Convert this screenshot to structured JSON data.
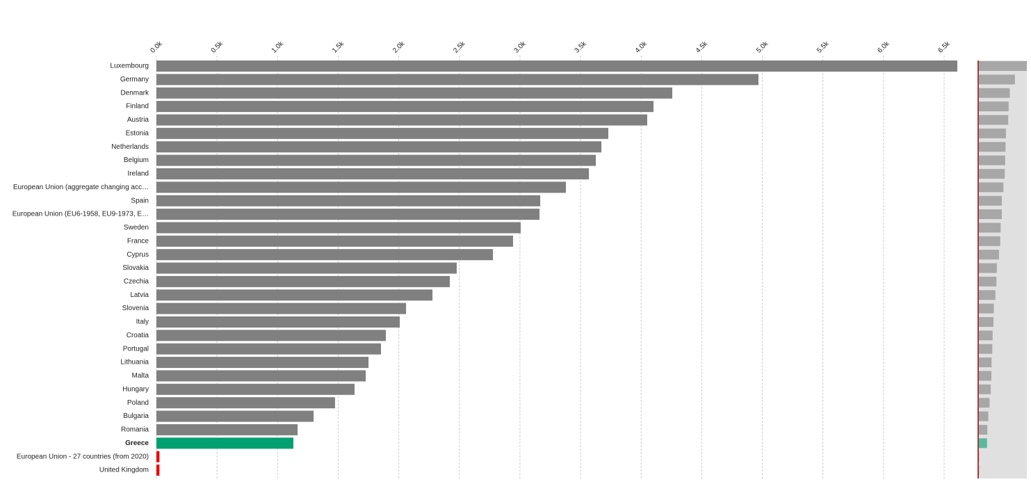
{
  "chart_data": {
    "type": "hbar",
    "categories": [
      "Luxembourg",
      "Germany",
      "Denmark",
      "Finland",
      "Austria",
      "Estonia",
      "Netherlands",
      "Belgium",
      "Ireland",
      "European Union (aggregate changing acc…",
      "Spain",
      "European Union (EU6-1958, EU9-1973, E…",
      "Sweden",
      "France",
      "Cyprus",
      "Slovakia",
      "Czechia",
      "Latvia",
      "Slovenia",
      "Italy",
      "Croatia",
      "Portugal",
      "Lithuania",
      "Malta",
      "Hungary",
      "Poland",
      "Bulgaria",
      "Romania",
      "Greece",
      "European Union - 27 countries (from 2020)",
      "United Kingdom"
    ],
    "values": [
      6609,
      4968,
      4257,
      4102,
      4050,
      3729,
      3672,
      3626,
      3569,
      3379,
      3167,
      3161,
      3006,
      2943,
      2777,
      2478,
      2421,
      2278,
      2060,
      2008,
      1893,
      1853,
      1750,
      1727,
      1635,
      1474,
      1297,
      1165,
      1130,
      25,
      25
    ],
    "colors": [
      "#808080",
      "#808080",
      "#808080",
      "#808080",
      "#808080",
      "#808080",
      "#808080",
      "#808080",
      "#808080",
      "#808080",
      "#808080",
      "#808080",
      "#808080",
      "#808080",
      "#808080",
      "#808080",
      "#808080",
      "#808080",
      "#808080",
      "#808080",
      "#808080",
      "#808080",
      "#808080",
      "#808080",
      "#808080",
      "#808080",
      "#808080",
      "#808080",
      "#00a070",
      "#ee0000",
      "#ee0000"
    ],
    "bold_category": 28,
    "xlim": [
      0,
      6500
    ],
    "xticks": [
      {
        "value": 0,
        "label": "0.0k"
      },
      {
        "value": 500,
        "label": "0.5k"
      },
      {
        "value": 1000,
        "label": "1.0k"
      },
      {
        "value": 1500,
        "label": "1.5k"
      },
      {
        "value": 2000,
        "label": "2.0k"
      },
      {
        "value": 2500,
        "label": "2.5k"
      },
      {
        "value": 3000,
        "label": "3.0k"
      },
      {
        "value": 3500,
        "label": "3.5k"
      },
      {
        "value": 4000,
        "label": "4.0k"
      },
      {
        "value": 4500,
        "label": "4.5k"
      },
      {
        "value": 5000,
        "label": "5.0k"
      },
      {
        "value": 5500,
        "label": "5.5k"
      },
      {
        "value": 6000,
        "label": "6.0k"
      },
      {
        "value": 6500,
        "label": "6.5k"
      }
    ],
    "grid": true
  }
}
